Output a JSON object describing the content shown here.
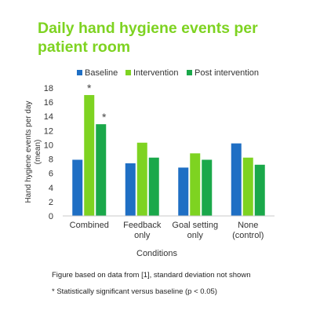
{
  "chart_data": {
    "type": "bar",
    "title_line1": "Daily hand hygiene events per",
    "title_line2": "patient room",
    "categories": [
      {
        "line1": "Combined",
        "line2": ""
      },
      {
        "line1": "Feedback",
        "line2": "only"
      },
      {
        "line1": "Goal setting",
        "line2": "only"
      },
      {
        "line1": "None",
        "line2": "(control)"
      }
    ],
    "series": [
      {
        "name": "Baseline",
        "color": "#1f6fc4",
        "values": [
          7.9,
          7.4,
          6.8,
          10.2
        ]
      },
      {
        "name": "Intervention",
        "color": "#7ed321",
        "values": [
          17.0,
          10.3,
          8.8,
          8.2
        ]
      },
      {
        "name": "Post intervention",
        "color": "#1aa84a",
        "values": [
          12.9,
          8.2,
          7.9,
          7.2
        ]
      }
    ],
    "significance": [
      {
        "category": 0,
        "series": 1,
        "label": "*"
      },
      {
        "category": 0,
        "series": 2,
        "label": "*"
      }
    ],
    "ylabel_line1": "Hand hygiene events per day",
    "ylabel_line2": "(mean)",
    "xlabel": "Conditions",
    "ylim": [
      0,
      18
    ],
    "yticks": [
      0,
      2,
      4,
      6,
      8,
      10,
      12,
      14,
      16,
      18
    ],
    "legend_position": "top",
    "grid": false
  },
  "notes": {
    "source": "Figure based on data from [1], standard deviation not shown",
    "significance": "* Statistically significant versus baseline (p < 0.05)"
  }
}
